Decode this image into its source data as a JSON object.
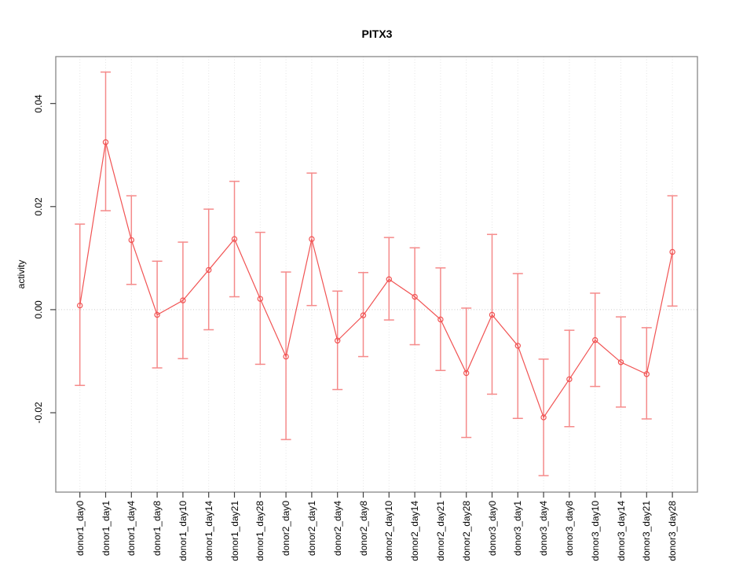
{
  "chart_data": {
    "type": "line",
    "title": "PITX3",
    "xlabel": "",
    "ylabel": "activity",
    "legend": "none",
    "grid": "vertical-dotted-per-category",
    "zero_line": true,
    "categories": [
      "donor1_day0",
      "donor1_day1",
      "donor1_day4",
      "donor1_day8",
      "donor1_day10",
      "donor1_day14",
      "donor1_day21",
      "donor1_day28",
      "donor2_day0",
      "donor2_day1",
      "donor2_day4",
      "donor2_day8",
      "donor2_day10",
      "donor2_day14",
      "donor2_day21",
      "donor2_day28",
      "donor3_day0",
      "donor3_day1",
      "donor3_day4",
      "donor3_day8",
      "donor3_day10",
      "donor3_day14",
      "donor3_day21",
      "donor3_day28"
    ],
    "series": [
      {
        "name": "activity",
        "marker": "open-circle",
        "values": [
          0.0008,
          0.0325,
          0.0135,
          -0.001,
          0.0018,
          0.0077,
          0.0137,
          0.0021,
          -0.0091,
          0.0137,
          -0.006,
          -0.0011,
          0.0059,
          0.0025,
          -0.0019,
          -0.0123,
          -0.001,
          -0.007,
          -0.0209,
          -0.0135,
          -0.0059,
          -0.0102,
          -0.0125,
          0.0112
        ],
        "error_low": [
          -0.0147,
          0.0192,
          0.0049,
          -0.0113,
          -0.0095,
          -0.0039,
          0.0025,
          -0.0106,
          -0.0252,
          0.0008,
          -0.0155,
          -0.0091,
          -0.002,
          -0.0068,
          -0.0118,
          -0.0248,
          -0.0164,
          -0.0211,
          -0.0322,
          -0.0227,
          -0.0149,
          -0.0189,
          -0.0212,
          0.0007
        ],
        "error_high": [
          0.0166,
          0.0461,
          0.0221,
          0.0094,
          0.0131,
          0.0195,
          0.0249,
          0.015,
          0.0073,
          0.0265,
          0.0036,
          0.0072,
          0.014,
          0.012,
          0.0081,
          0.0003,
          0.0146,
          0.007,
          -0.0096,
          -0.004,
          0.0032,
          -0.0014,
          -0.0035,
          0.0221
        ]
      }
    ],
    "yticks": [
      -0.02,
      0,
      0.02,
      0.04
    ],
    "ytick_labels": [
      "-0.02",
      "0.00",
      "0.02",
      "0.04"
    ],
    "ylim": [
      -0.0354,
      0.0491
    ],
    "colors": {
      "series": "#f15353",
      "error_bar": "#f58a8a",
      "grid": "#e4e4e4",
      "zero_line": "#cccccc",
      "box": "#878787",
      "tick": "#404040",
      "text": "#000000"
    }
  }
}
